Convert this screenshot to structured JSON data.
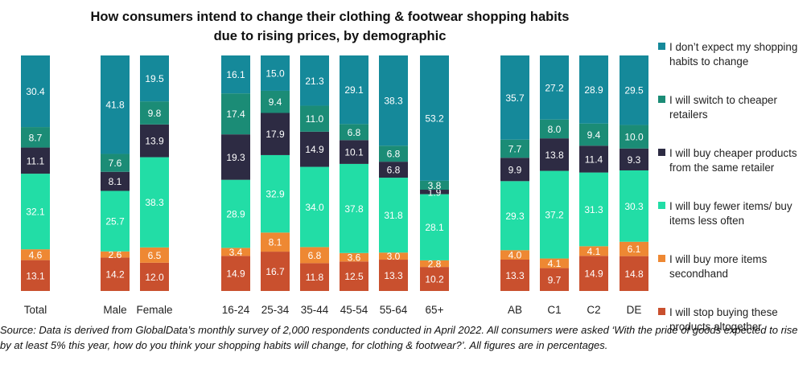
{
  "chart_data": {
    "type": "bar",
    "stacked": true,
    "title": "How consumers intend to change their clothing & footwear shopping habits due to rising prices, by demographic",
    "categories": [
      "Total",
      "Male",
      "Female",
      "16-24",
      "25-34",
      "35-44",
      "45-54",
      "55-64",
      "65+",
      "AB",
      "C1",
      "C2",
      "DE"
    ],
    "groups": [
      [
        "Total"
      ],
      [
        "Male",
        "Female"
      ],
      [
        "16-24",
        "25-34",
        "35-44",
        "45-54",
        "55-64",
        "65+"
      ],
      [
        "AB",
        "C1",
        "C2",
        "DE"
      ]
    ],
    "series": [
      {
        "name": "I will stop buying these products altogether",
        "color": "#C9502E",
        "values": [
          13.1,
          14.2,
          12.0,
          14.9,
          16.7,
          11.8,
          12.5,
          13.3,
          10.2,
          13.3,
          9.7,
          14.9,
          14.8
        ]
      },
      {
        "name": "I will buy more items secondhand",
        "color": "#EE8833",
        "values": [
          4.6,
          2.6,
          6.5,
          3.4,
          8.1,
          6.8,
          3.6,
          3.0,
          2.8,
          4.0,
          4.1,
          4.1,
          6.1
        ]
      },
      {
        "name": "I will buy fewer items/ buy items less often",
        "color": "#22DDA6",
        "values": [
          32.1,
          25.7,
          38.3,
          28.9,
          32.9,
          34.0,
          37.8,
          31.8,
          28.1,
          29.3,
          37.2,
          31.3,
          30.3
        ]
      },
      {
        "name": "I will buy cheaper products from the same retailer",
        "color": "#2D2B43",
        "values": [
          11.1,
          8.1,
          13.9,
          19.3,
          17.9,
          14.9,
          10.1,
          6.8,
          1.9,
          9.9,
          13.8,
          11.4,
          9.3
        ]
      },
      {
        "name": "I will switch to cheaper retailers",
        "color": "#1B8C76",
        "values": [
          8.7,
          7.6,
          9.8,
          17.4,
          9.4,
          11.0,
          6.8,
          6.8,
          3.8,
          7.7,
          8.0,
          9.4,
          10.0
        ]
      },
      {
        "name": "I don’t expect my shopping habits to change",
        "color": "#15899A",
        "values": [
          30.4,
          41.8,
          19.5,
          16.1,
          15.0,
          21.3,
          29.1,
          38.3,
          53.2,
          35.7,
          27.2,
          28.9,
          29.5
        ]
      }
    ],
    "legend_order": [
      "I don’t expect my shopping habits to change",
      "I will switch to cheaper retailers",
      "I will buy cheaper products from the same retailer",
      "I will buy fewer items/ buy items less often",
      "I will buy more items secondhand",
      "I will stop buying these products altogether"
    ],
    "legend_position": "right",
    "unit": "%",
    "grid": false
  },
  "source_note": "Source: Data is derived from GlobalData’s monthly survey of 2,000 respondents conducted in April 2022. All consumers were asked ‘With the price of goods expected to rise by at least 5% this year, how do you think your shopping habits will change, for clothing & footwear?’. All figures are in percentages."
}
